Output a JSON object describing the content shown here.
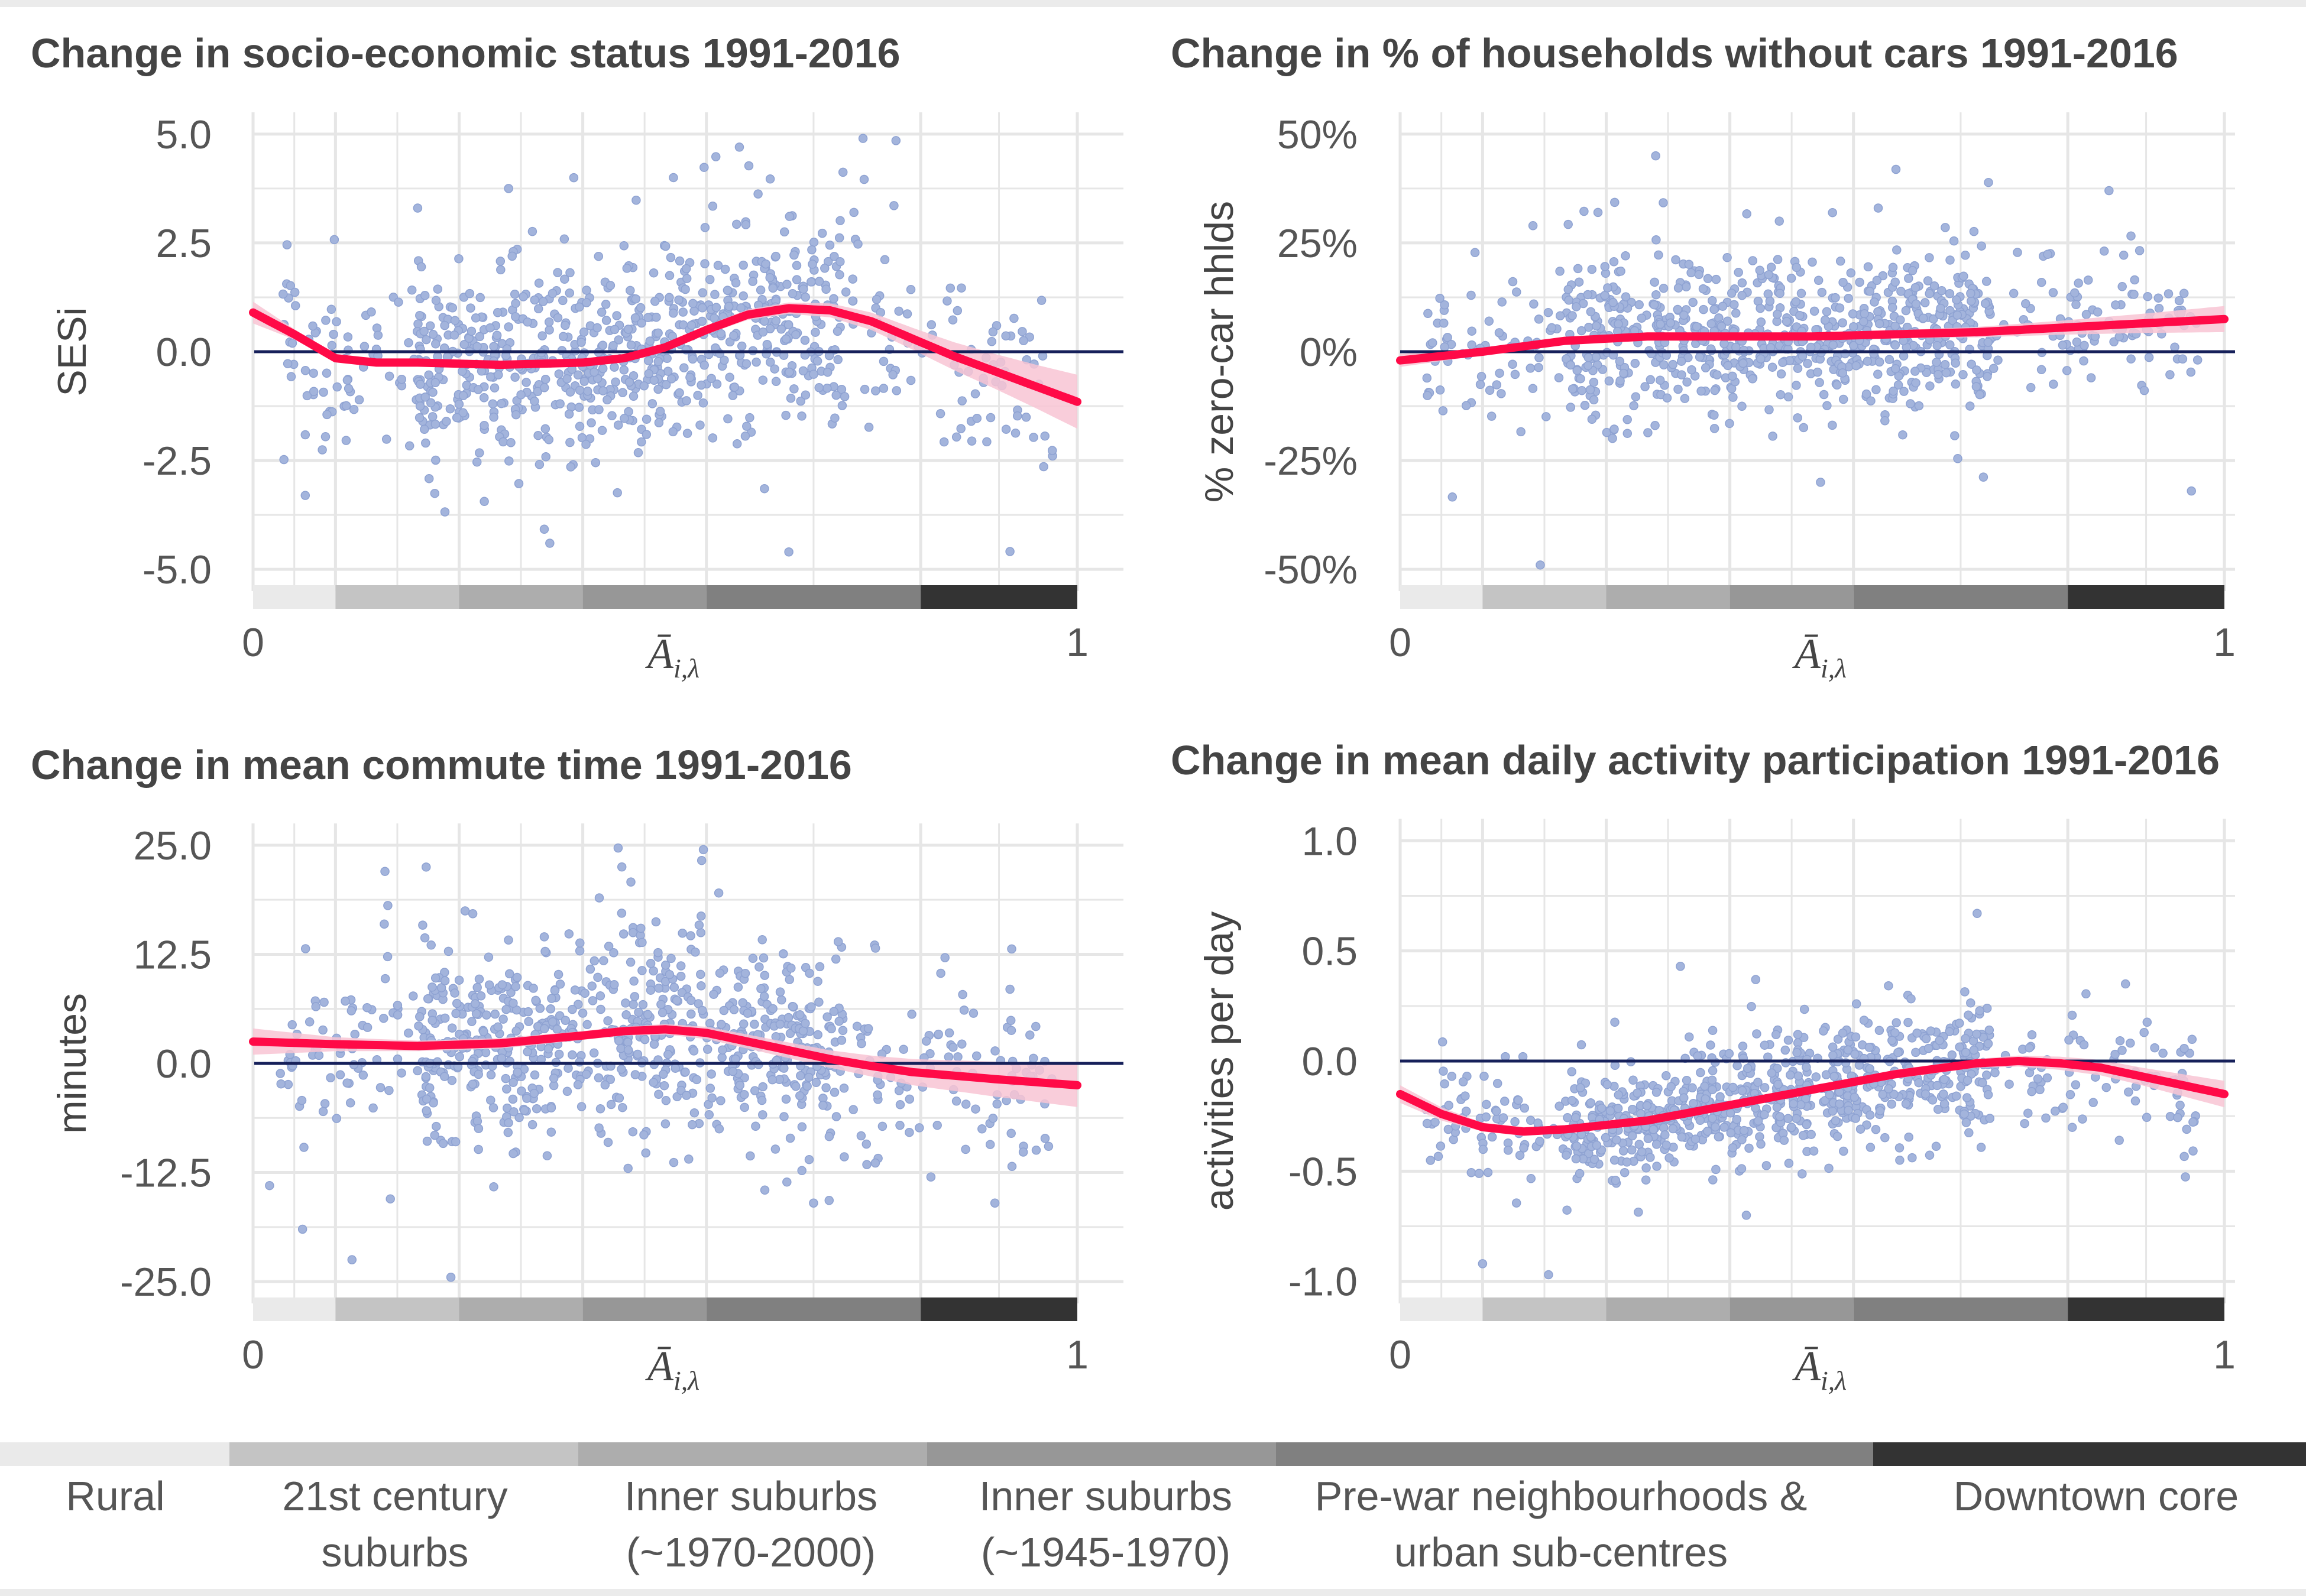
{
  "colors": {
    "points": "#a3b4dc",
    "smooth": "#ff0a47",
    "ribbon": "#f8c4d3",
    "zero_line": "#16205a",
    "grid": "#e6e6e6",
    "band_shades": [
      "#eaeaea",
      "#c4c4c4",
      "#adadad",
      "#979797",
      "#808080",
      "#333333"
    ]
  },
  "legend": {
    "items": [
      {
        "label_lines": [
          "Rural"
        ],
        "color": "#eaeaea"
      },
      {
        "label_lines": [
          "21st century",
          "suburbs"
        ],
        "color": "#c4c4c4"
      },
      {
        "label_lines": [
          "Inner suburbs",
          "(~1970-2000)"
        ],
        "color": "#adadad"
      },
      {
        "label_lines": [
          "Inner suburbs",
          "(~1945-1970)"
        ],
        "color": "#979797"
      },
      {
        "label_lines": [
          "Pre-war neighbourhoods &",
          "urban sub-centres"
        ],
        "color": "#808080"
      },
      {
        "label_lines": [
          "Downtown core"
        ],
        "color": "#333333"
      }
    ]
  },
  "chart_data": [
    {
      "type": "scatter",
      "title": "Change in socio-economic status 1991-2016",
      "xlabel": "Ā",
      "xlabel_sub": "i,λ",
      "ylabel": "SESi",
      "xlim": [
        0,
        1
      ],
      "x_ticks": [
        "0",
        "1"
      ],
      "ylim": [
        -5.5,
        5.5
      ],
      "y_ticks": [
        5.0,
        2.5,
        0.0,
        -2.5,
        -5.0
      ],
      "y_tick_labels": [
        "5.0",
        "2.5",
        "0.0",
        "-2.5",
        "-5.0"
      ],
      "band_breaks": [
        0,
        0.1,
        0.25,
        0.4,
        0.55,
        0.81,
        1.0
      ],
      "smooth_x": [
        0,
        0.05,
        0.1,
        0.15,
        0.2,
        0.3,
        0.4,
        0.45,
        0.5,
        0.55,
        0.6,
        0.65,
        0.7,
        0.75,
        0.8,
        0.85,
        0.9,
        0.95,
        1.0
      ],
      "smooth_y": [
        0.9,
        0.4,
        -0.15,
        -0.25,
        -0.25,
        -0.3,
        -0.25,
        -0.15,
        0.1,
        0.5,
        0.85,
        1.0,
        0.95,
        0.7,
        0.3,
        -0.1,
        -0.45,
        -0.8,
        -1.15
      ],
      "smooth_se": [
        0.25,
        0.12,
        0.07,
        0.06,
        0.06,
        0.06,
        0.06,
        0.07,
        0.08,
        0.1,
        0.12,
        0.13,
        0.16,
        0.2,
        0.25,
        0.32,
        0.4,
        0.5,
        0.62
      ],
      "spread": 1.3,
      "n_points": 900,
      "outliers": [
        [
          0.36,
          -4.4
        ],
        [
          0.65,
          -4.6
        ],
        [
          0.59,
          4.7
        ],
        [
          0.74,
          4.9
        ],
        [
          0.78,
          4.85
        ],
        [
          0.51,
          4.0
        ],
        [
          0.31,
          3.75
        ]
      ]
    },
    {
      "type": "scatter",
      "title": "Change in % of households without cars 1991-2016",
      "xlabel": "Ā",
      "xlabel_sub": "i,λ",
      "ylabel": "% zero-car hhlds",
      "xlim": [
        0,
        1
      ],
      "x_ticks": [
        "0",
        "1"
      ],
      "ylim": [
        -55,
        55
      ],
      "y_ticks": [
        50,
        25,
        0,
        -25,
        -50
      ],
      "y_tick_labels": [
        "50%",
        "25%",
        "0%",
        "-25%",
        "-50%"
      ],
      "band_breaks": [
        0,
        0.1,
        0.25,
        0.4,
        0.55,
        0.81,
        1.0
      ],
      "smooth_x": [
        0,
        0.1,
        0.2,
        0.3,
        0.4,
        0.5,
        0.6,
        0.7,
        0.8,
        0.9,
        1.0
      ],
      "smooth_y": [
        -2,
        0,
        2.5,
        3.5,
        3.5,
        3.5,
        4,
        4.5,
        5.5,
        6.5,
        7.5
      ],
      "smooth_se": [
        1.5,
        0.8,
        0.6,
        0.6,
        0.6,
        0.7,
        0.9,
        1.2,
        1.6,
        2.2,
        3.0
      ],
      "spread": 10,
      "n_points": 900,
      "outliers": [
        [
          0.31,
          45
        ],
        [
          0.17,
          -49
        ],
        [
          0.24,
          32
        ],
        [
          0.46,
          30
        ],
        [
          0.58,
          33
        ],
        [
          0.51,
          -30
        ],
        [
          0.86,
          37
        ],
        [
          0.96,
          -32
        ]
      ]
    },
    {
      "type": "scatter",
      "title": "Change in mean commute time 1991-2016",
      "xlabel": "Ā",
      "xlabel_sub": "i,λ",
      "ylabel": "minutes",
      "xlim": [
        0,
        1
      ],
      "x_ticks": [
        "0",
        "1"
      ],
      "ylim": [
        -27.5,
        27.5
      ],
      "y_ticks": [
        25.0,
        12.5,
        0.0,
        -12.5,
        -25.0
      ],
      "y_tick_labels": [
        "25.0",
        "12.5",
        "0.0",
        "-12.5",
        "-25.0"
      ],
      "band_breaks": [
        0,
        0.1,
        0.25,
        0.4,
        0.55,
        0.81,
        1.0
      ],
      "smooth_x": [
        0,
        0.1,
        0.2,
        0.3,
        0.4,
        0.45,
        0.5,
        0.55,
        0.6,
        0.65,
        0.7,
        0.75,
        0.8,
        0.9,
        1.0
      ],
      "smooth_y": [
        2.5,
        2.2,
        2.0,
        2.3,
        3.2,
        3.7,
        3.9,
        3.5,
        2.5,
        1.5,
        0.5,
        -0.3,
        -1.0,
        -1.8,
        -2.5
      ],
      "smooth_se": [
        1.5,
        0.8,
        0.6,
        0.6,
        0.5,
        0.5,
        0.6,
        0.7,
        0.8,
        0.9,
        1.0,
        1.2,
        1.5,
        2.0,
        2.5
      ],
      "spread": 6.5,
      "n_points": 900,
      "outliers": [
        [
          0.24,
          -24.5
        ],
        [
          0.12,
          -22.5
        ],
        [
          0.06,
          -19
        ],
        [
          0.21,
          22.5
        ],
        [
          0.16,
          22
        ],
        [
          0.02,
          -14
        ],
        [
          0.68,
          -16
        ],
        [
          0.9,
          -16
        ]
      ]
    },
    {
      "type": "scatter",
      "title": "Change in mean daily activity participation 1991-2016",
      "xlabel": "Ā",
      "xlabel_sub": "i,λ",
      "ylabel": "activities per day",
      "xlim": [
        0,
        1
      ],
      "x_ticks": [
        "0",
        "1"
      ],
      "ylim": [
        -1.1,
        1.1
      ],
      "y_ticks": [
        1.0,
        0.5,
        0.0,
        -0.5,
        -1.0
      ],
      "y_tick_labels": [
        "1.0",
        "0.5",
        "0.0",
        "-0.5",
        "-1.0"
      ],
      "band_breaks": [
        0,
        0.1,
        0.25,
        0.4,
        0.55,
        0.81,
        1.0
      ],
      "smooth_x": [
        0,
        0.05,
        0.1,
        0.15,
        0.2,
        0.3,
        0.4,
        0.5,
        0.6,
        0.7,
        0.75,
        0.8,
        0.85,
        0.9,
        0.95,
        1.0
      ],
      "smooth_y": [
        -0.15,
        -0.24,
        -0.3,
        -0.32,
        -0.31,
        -0.27,
        -0.2,
        -0.13,
        -0.06,
        -0.01,
        0.0,
        -0.01,
        -0.03,
        -0.07,
        -0.11,
        -0.15
      ],
      "smooth_se": [
        0.04,
        0.03,
        0.02,
        0.02,
        0.015,
        0.015,
        0.015,
        0.015,
        0.02,
        0.02,
        0.025,
        0.03,
        0.035,
        0.04,
        0.05,
        0.06
      ],
      "spread": 0.15,
      "n_points": 900,
      "outliers": [
        [
          0.18,
          -0.97
        ],
        [
          0.1,
          -0.92
        ],
        [
          0.7,
          0.67
        ],
        [
          0.34,
          0.43
        ],
        [
          0.42,
          -0.7
        ],
        [
          0.88,
          0.35
        ]
      ]
    }
  ]
}
